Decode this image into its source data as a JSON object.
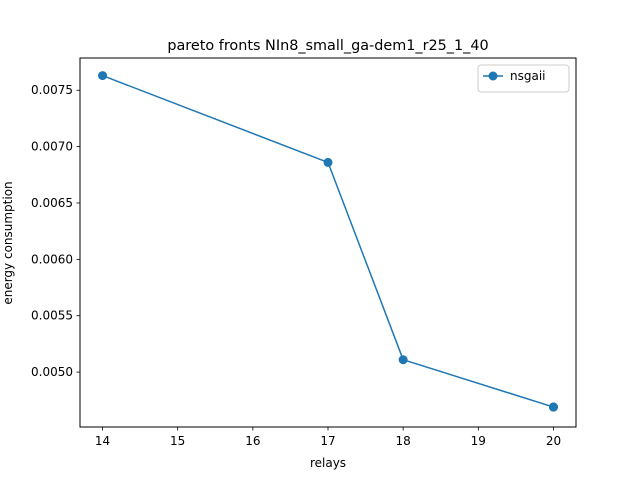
{
  "chart_data": {
    "type": "line",
    "title": "pareto fronts NIn8_small_ga-dem1_r25_1_40",
    "xlabel": "relays",
    "ylabel": "energy consumption",
    "xlim": [
      13.7,
      20.3
    ],
    "ylim": [
      0.004513,
      0.007786
    ],
    "xticks": [
      14,
      15,
      16,
      17,
      18,
      19,
      20
    ],
    "xtick_labels": [
      "14",
      "15",
      "16",
      "17",
      "18",
      "19",
      "20"
    ],
    "yticks": [
      0.005,
      0.0055,
      0.006,
      0.0065,
      0.007,
      0.0075
    ],
    "ytick_labels": [
      "0.0050",
      "0.0055",
      "0.0060",
      "0.0065",
      "0.0070",
      "0.0075"
    ],
    "grid": false,
    "legend_position": "upper right",
    "series": [
      {
        "name": "nsgaii",
        "color": "#1f77b4",
        "marker": "circle",
        "x": [
          14,
          17,
          18,
          20,
          20,
          20
        ],
        "y": [
          0.00763,
          0.00686,
          0.00511,
          0.00469,
          0.00469,
          0.00469
        ]
      }
    ]
  }
}
